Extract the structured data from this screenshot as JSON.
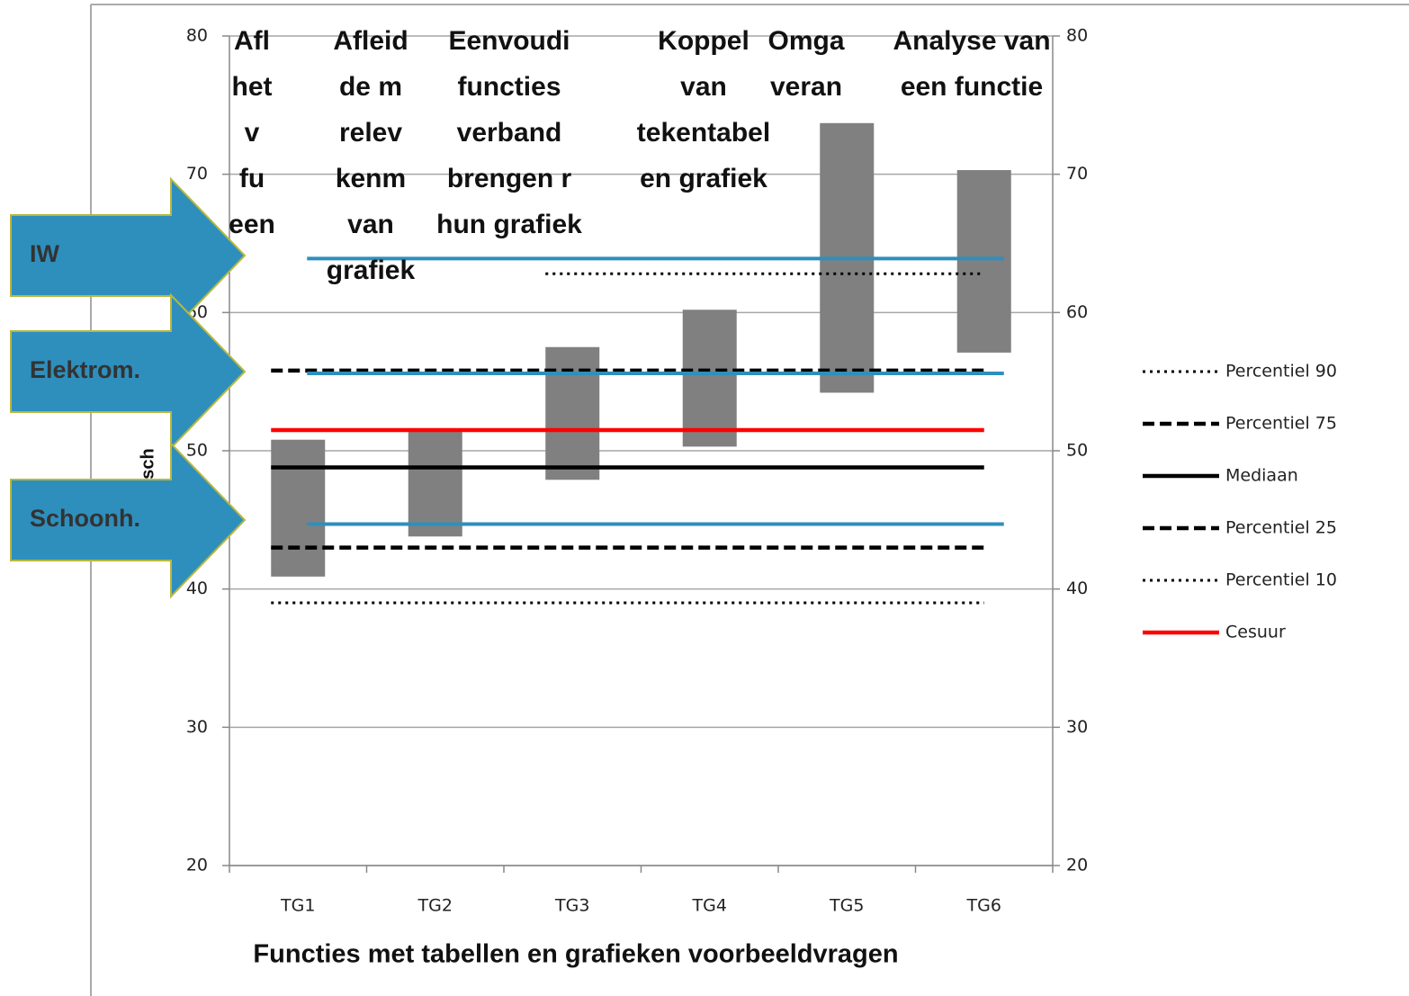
{
  "chart_data": {
    "type": "floating-bar",
    "xlabel": "Functies met tabellen en grafieken voorbeeldvragen",
    "ylabel": "eetsch",
    "categories": [
      "TG1",
      "TG2",
      "TG3",
      "TG4",
      "TG5",
      "TG6"
    ],
    "category_titles": [
      [
        "Afl",
        "het",
        "v",
        "fu",
        "een"
      ],
      [
        "Afleid",
        "de m",
        "relev",
        "kenm",
        "van",
        "grafiek"
      ],
      [
        "Eenvoudi",
        "functies",
        "verband",
        "brengen r",
        "hun grafiek"
      ],
      [
        "Koppel",
        "van",
        "tekentabel",
        "en grafiek"
      ],
      [
        "Omga",
        "veran"
      ],
      [
        "Analyse van",
        "een functie"
      ]
    ],
    "low": [
      40.9,
      43.8,
      47.9,
      50.3,
      54.2,
      57.1
    ],
    "high": [
      50.8,
      51.6,
      57.5,
      60.2,
      73.7,
      70.3
    ],
    "color": "#808080",
    "reference_lines": [
      {
        "name": "Percentiel 90",
        "color": "#000000",
        "style": "dotted",
        "value": 62.8,
        "start": "TG3"
      },
      {
        "name": "Percentiel 75",
        "color": "#000000",
        "style": "dashed",
        "value": 55.8
      },
      {
        "name": "Mediaan",
        "color": "#000000",
        "style": "solid",
        "value": 48.8
      },
      {
        "name": "Percentiel 25",
        "color": "#000000",
        "style": "dashed",
        "value": 43
      },
      {
        "name": "Percentiel 10",
        "color": "#000000",
        "style": "dotted",
        "value": 39
      },
      {
        "name": "Cesuur",
        "color": "#ff0000",
        "style": "solid",
        "value": 51.5
      }
    ],
    "arrows": [
      {
        "label": "IW",
        "color": "#2e8fbd",
        "value": 63.9
      },
      {
        "label": "Elektrom.",
        "color": "#2e8fbd",
        "value": 55.6
      },
      {
        "label": "Schoonh.",
        "color": "#2e8fbd",
        "value": 44.7
      }
    ],
    "ylim": [
      20,
      80
    ],
    "yticks": [
      20,
      30,
      40,
      50,
      60,
      70,
      80
    ],
    "y2lim": [
      20,
      80
    ],
    "y2ticks": [
      20,
      30,
      40,
      50,
      60,
      70,
      80
    ],
    "grid": true,
    "legend": "right"
  }
}
